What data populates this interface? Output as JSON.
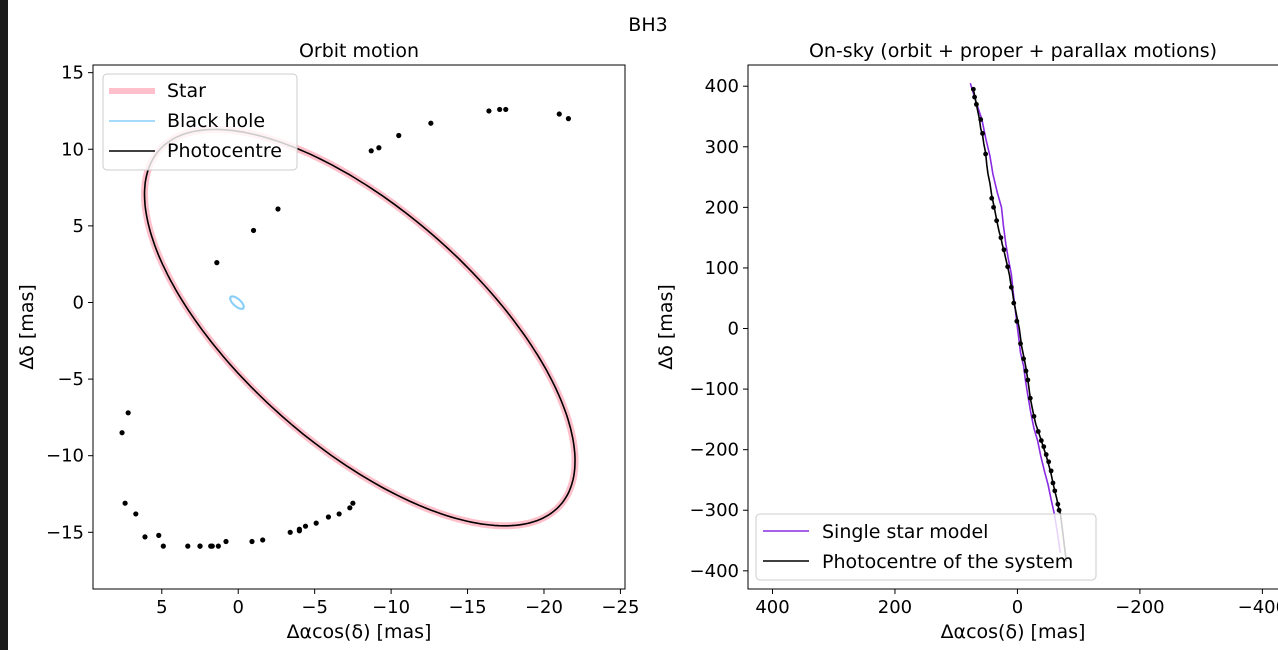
{
  "figure": {
    "suptitle": "BH3"
  },
  "chart_data": [
    {
      "type": "line",
      "title": "Orbit motion",
      "xlabel": "Δαcos(δ) [mas]",
      "ylabel": "Δδ [mas]",
      "xlim": [
        9.5,
        -25.3
      ],
      "ylim": [
        -18.7,
        15.5
      ],
      "xticks": [
        5,
        0,
        -5,
        -10,
        -15,
        -20,
        -25
      ],
      "xtick_labels": [
        "5",
        "0",
        "−5",
        "−10",
        "−15",
        "−20",
        "−25"
      ],
      "yticks": [
        15,
        10,
        5,
        0,
        -5,
        -10,
        -15
      ],
      "ytick_labels": [
        "15",
        "10",
        "5",
        "0",
        "−5",
        "−10",
        "−15"
      ],
      "grid": false,
      "legend": "upper-left",
      "series": [
        {
          "name": "Star",
          "color": "#ffc0cb",
          "ellipse": {
            "center": [
              -7.95,
              -1.64
            ],
            "semi_axes": [
              17.5,
              7.7
            ],
            "rotation_deg": 41.4
          }
        },
        {
          "name": "Black hole",
          "color": "#87cefa",
          "ellipse": {
            "center": [
              0.08,
              -0.01
            ],
            "semi_axes": [
              0.55,
              0.24
            ],
            "rotation_deg": 41.4
          }
        },
        {
          "name": "Photocentre",
          "color": "#000000",
          "ellipse": {
            "center": [
              -7.95,
              -1.64
            ],
            "semi_axes": [
              17.5,
              7.7
            ],
            "rotation_deg": 41.4
          },
          "points_x": [
            1.4,
            -1.0,
            -2.6,
            -10.5,
            -12.6,
            -16.4,
            -17.1,
            -17.5,
            -21.0,
            -21.6,
            -8.7,
            -9.2,
            1.7,
            2.5,
            5.2,
            6.1,
            -4.0,
            -4.4,
            -5.1,
            -5.9,
            -6.6,
            -7.3,
            -7.5,
            4.9,
            3.3,
            1.8,
            1.3,
            2.5,
            0.8,
            -0.9,
            -1.6,
            -3.4,
            -4.0,
            7.6,
            7.2,
            7.4,
            6.7
          ],
          "points_y": [
            2.6,
            4.7,
            6.1,
            10.9,
            11.7,
            12.5,
            12.6,
            12.6,
            12.3,
            12.0,
            9.9,
            10.1,
            -15.9,
            -15.9,
            -15.2,
            -15.3,
            -14.8,
            -14.6,
            -14.4,
            -14.0,
            -13.8,
            -13.4,
            -13.1,
            -15.9,
            -15.9,
            -15.9,
            -15.9,
            -15.9,
            -15.6,
            -15.6,
            -15.5,
            -15.0,
            -14.9,
            -8.5,
            -7.2,
            -13.1,
            -13.8
          ]
        }
      ]
    },
    {
      "type": "line",
      "title": "On-sky (orbit + proper + parallax motions)",
      "xlabel": "Δαcos(δ) [mas]",
      "ylabel": "Δδ [mas]",
      "xlim": [
        440,
        -450
      ],
      "ylim": [
        -430,
        435
      ],
      "xticks": [
        400,
        200,
        0,
        -200,
        -400
      ],
      "xtick_labels": [
        "400",
        "200",
        "0",
        "−200",
        "−400"
      ],
      "yticks": [
        400,
        300,
        200,
        100,
        0,
        -100,
        -200,
        -300,
        -400
      ],
      "ytick_labels": [
        "400",
        "300",
        "200",
        "100",
        "0",
        "−100",
        "−200",
        "−300",
        "−400"
      ],
      "grid": false,
      "legend": "lower-left",
      "series": [
        {
          "name": "Single star model",
          "color": "#8a2be2",
          "x": [
            77,
            68,
            58,
            52,
            45,
            40,
            33,
            26,
            23,
            19,
            15,
            10,
            7,
            4,
            1,
            -2,
            -5,
            -10,
            -13,
            -17,
            -22,
            -27,
            -33,
            -38,
            -44,
            -50,
            -55,
            -60,
            -65,
            -70
          ],
          "y": [
            405,
            375,
            345,
            315,
            285,
            255,
            225,
            200,
            170,
            140,
            115,
            90,
            60,
            35,
            10,
            -15,
            -40,
            -62,
            -85,
            -110,
            -140,
            -165,
            -185,
            -210,
            -235,
            -258,
            -282,
            -305,
            -335,
            -370
          ]
        },
        {
          "name": "Photocentre of the system",
          "color": "#000000",
          "x": [
            72,
            70,
            68,
            65,
            62,
            60,
            57,
            55,
            52,
            50,
            48,
            45,
            42,
            39,
            36,
            34,
            32,
            30,
            27,
            25,
            22,
            19,
            16,
            13,
            11,
            8,
            6,
            3,
            0,
            -3,
            -5,
            -7,
            -10,
            -13,
            -15,
            -17,
            -19,
            -21,
            -24,
            -27,
            -30,
            -34,
            -39,
            -43,
            -47,
            -51,
            -55,
            -58,
            -61,
            -64,
            -66,
            -68,
            -70,
            -72,
            -75,
            -78,
            -80
          ],
          "y": [
            395,
            385,
            375,
            360,
            345,
            330,
            320,
            305,
            290,
            270,
            255,
            240,
            220,
            205,
            190,
            180,
            170,
            160,
            150,
            140,
            128,
            115,
            102,
            88,
            75,
            60,
            45,
            30,
            15,
            0,
            -15,
            -30,
            -45,
            -60,
            -72,
            -85,
            -100,
            -115,
            -130,
            -145,
            -158,
            -170,
            -185,
            -198,
            -210,
            -225,
            -240,
            -255,
            -268,
            -280,
            -290,
            -300,
            -305,
            -320,
            -345,
            -370,
            -385
          ],
          "points_x": [
            72,
            70,
            67,
            60,
            57,
            52,
            42,
            39,
            34,
            27,
            22,
            16,
            10,
            6,
            1,
            -5,
            -10,
            -14,
            -17,
            -21,
            -27,
            -34,
            -39,
            -43,
            -47,
            -51,
            -55,
            -58,
            -61,
            -66,
            -68
          ],
          "points_y": [
            395,
            382,
            370,
            345,
            322,
            288,
            215,
            200,
            178,
            150,
            130,
            102,
            68,
            42,
            12,
            -25,
            -50,
            -70,
            -85,
            -115,
            -145,
            -170,
            -185,
            -195,
            -208,
            -220,
            -235,
            -255,
            -268,
            -290,
            -300
          ]
        }
      ]
    }
  ]
}
